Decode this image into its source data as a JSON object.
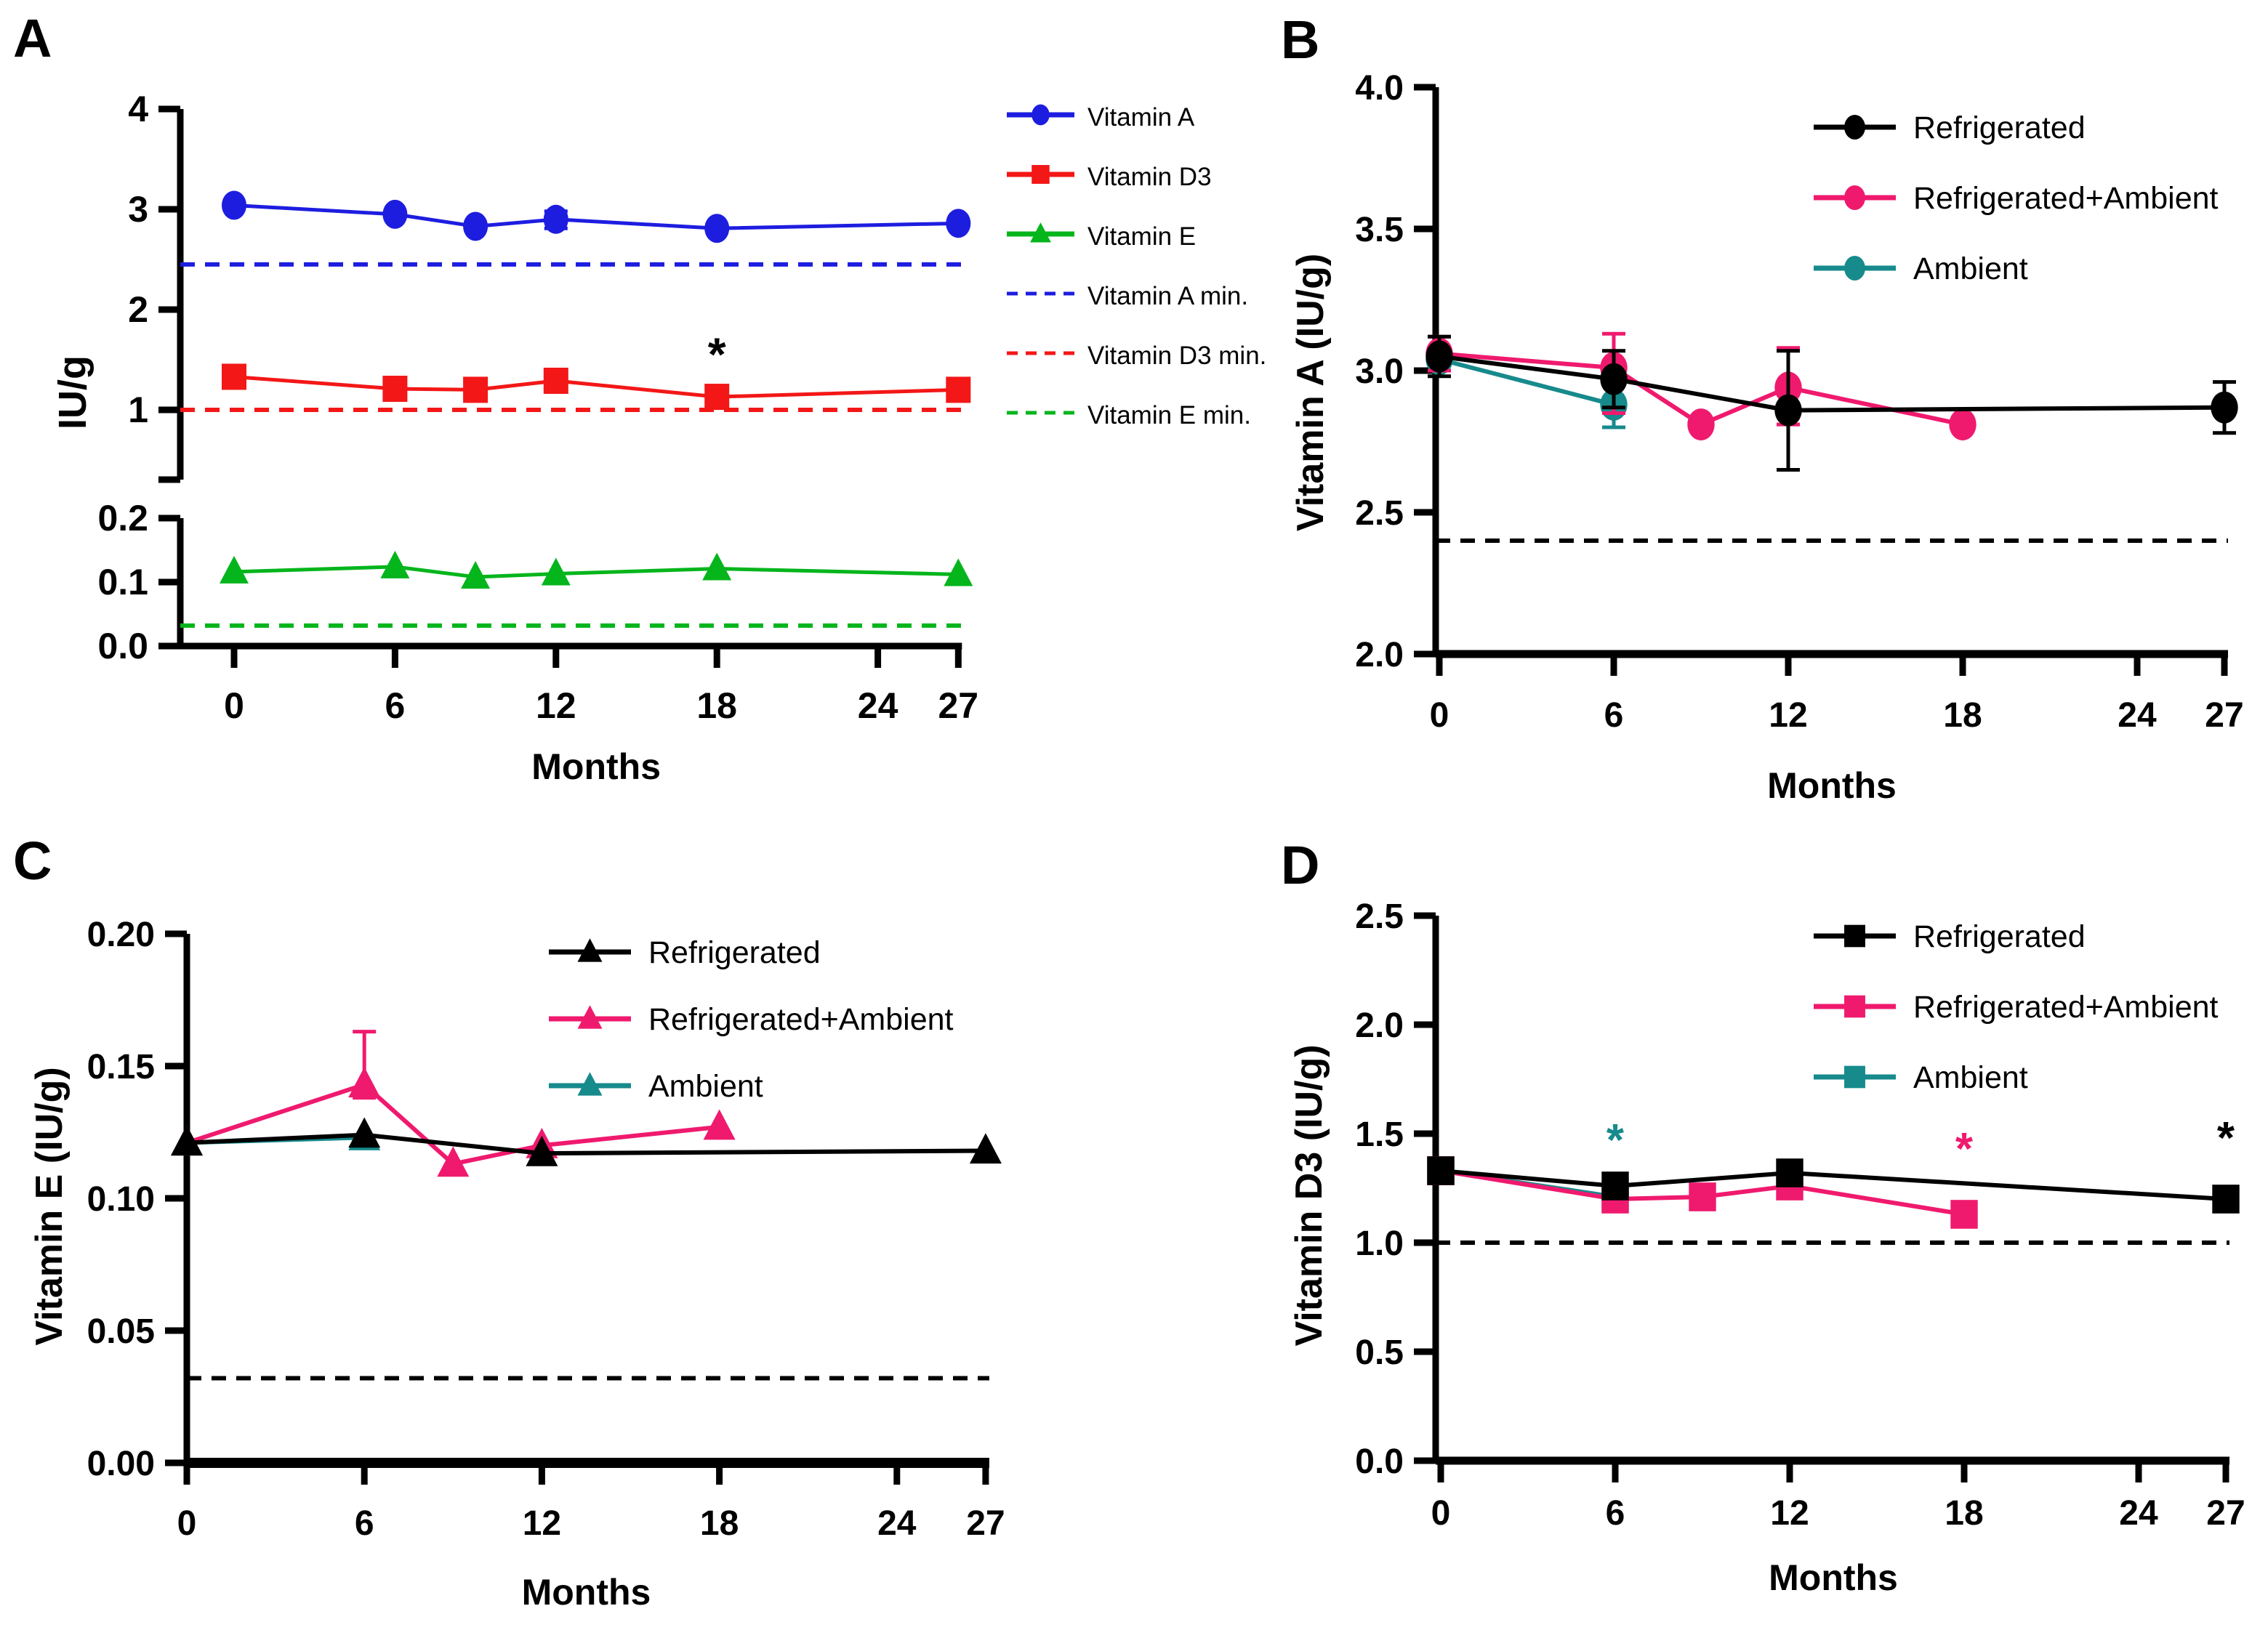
{
  "figure_type": "multi-panel line chart",
  "chart_data": [
    {
      "id": "A",
      "label": "A",
      "type": "line",
      "ylabel": "IU/g",
      "xlabel": "Months",
      "x_axis": {
        "domain": [
          0,
          27
        ],
        "ticks": [
          {
            "value": 0,
            "label": "0"
          },
          {
            "value": 6,
            "label": "6"
          },
          {
            "value": 12,
            "label": "12"
          },
          {
            "value": 18,
            "label": "18"
          },
          {
            "value": 24,
            "label": "24"
          },
          {
            "value": 27,
            "label": "27"
          }
        ]
      },
      "y_segments": [
        {
          "domain": [
            1,
            4
          ],
          "ticks": [
            {
              "value": 4,
              "label": "4"
            },
            {
              "value": 3,
              "label": "3"
            },
            {
              "value": 2,
              "label": "2"
            },
            {
              "value": 1,
              "label": "1"
            }
          ]
        },
        {
          "domain": [
            0,
            0.2
          ],
          "ticks": [
            {
              "value": 0.2,
              "label": "0.2"
            },
            {
              "value": 0.1,
              "label": "0.1"
            },
            {
              "value": 0,
              "label": "0.0"
            }
          ]
        }
      ],
      "ref_lines": [
        {
          "name": "Vitamin A min.",
          "value": 2.45,
          "color": "#1d1de0"
        },
        {
          "name": "Vitamin D3 min.",
          "value": 1.0,
          "color": "#f31717"
        },
        {
          "name": "Vitamin E min.",
          "value": 0.032,
          "color": "#04b51c"
        }
      ],
      "series": [
        {
          "name": "Vitamin A",
          "color": "#1d1de0",
          "marker": "circle",
          "points": [
            {
              "x": 0,
              "y": 3.04
            },
            {
              "x": 6,
              "y": 2.95
            },
            {
              "x": 9,
              "y": 2.83
            },
            {
              "x": 12,
              "y": 2.9,
              "err_plus": 0.08,
              "err_minus": 0.09
            },
            {
              "x": 18,
              "y": 2.81
            },
            {
              "x": 27,
              "y": 2.86
            }
          ]
        },
        {
          "name": "Vitamin D3",
          "color": "#f31717",
          "marker": "square",
          "points": [
            {
              "x": 0,
              "y": 1.33
            },
            {
              "x": 6,
              "y": 1.21
            },
            {
              "x": 9,
              "y": 1.2
            },
            {
              "x": 12,
              "y": 1.29
            },
            {
              "x": 18,
              "y": 1.13
            },
            {
              "x": 27,
              "y": 1.2
            }
          ]
        },
        {
          "name": "Vitamin E",
          "color": "#04b51c",
          "marker": "triangle",
          "points": [
            {
              "x": 0,
              "y": 0.116
            },
            {
              "x": 6,
              "y": 0.124
            },
            {
              "x": 9,
              "y": 0.108
            },
            {
              "x": 12,
              "y": 0.113
            },
            {
              "x": 18,
              "y": 0.121
            },
            {
              "x": 27,
              "y": 0.112
            }
          ]
        }
      ],
      "annotations": [
        {
          "x": 18,
          "y": 1.57,
          "text": "*",
          "color": "#000000"
        }
      ],
      "legend": [
        {
          "label": "Vitamin A",
          "color": "#1d1de0",
          "marker": "circle",
          "line": "solid"
        },
        {
          "label": "Vitamin D3",
          "color": "#f31717",
          "marker": "square",
          "line": "solid"
        },
        {
          "label": "Vitamin E",
          "color": "#04b51c",
          "marker": "triangle",
          "line": "solid"
        },
        {
          "label": "Vitamin A min.",
          "color": "#1d1de0",
          "marker": "none",
          "line": "dashed"
        },
        {
          "label": "Vitamin D3 min.",
          "color": "#f31717",
          "marker": "none",
          "line": "dashed"
        },
        {
          "label": "Vitamin E min.",
          "color": "#04b51c",
          "marker": "none",
          "line": "dashed"
        }
      ]
    },
    {
      "id": "B",
      "label": "B",
      "type": "line",
      "ylabel": "Vitamin A (IU/g)",
      "xlabel": "Months",
      "x_axis": {
        "domain": [
          0,
          27
        ],
        "ticks": [
          {
            "value": 0,
            "label": "0"
          },
          {
            "value": 6,
            "label": "6"
          },
          {
            "value": 12,
            "label": "12"
          },
          {
            "value": 18,
            "label": "18"
          },
          {
            "value": 24,
            "label": "24"
          },
          {
            "value": 27,
            "label": "27"
          }
        ]
      },
      "y_segments": [
        {
          "domain": [
            2,
            4
          ],
          "ticks": [
            {
              "value": 4,
              "label": "4.0"
            },
            {
              "value": 3.5,
              "label": "3.5"
            },
            {
              "value": 3,
              "label": "3.0"
            },
            {
              "value": 2.5,
              "label": "2.5"
            },
            {
              "value": 2,
              "label": "2.0"
            }
          ]
        }
      ],
      "ref_lines": [
        {
          "name": "minimum",
          "value": 2.4,
          "color": "#000000"
        }
      ],
      "series": [
        {
          "name": "Refrigerated",
          "color": "#000000",
          "marker": "circle",
          "points": [
            {
              "x": 0,
              "y": 3.05,
              "err_plus": 0.07,
              "err_minus": 0.07
            },
            {
              "x": 6,
              "y": 2.97,
              "err_plus": 0.1,
              "err_minus": 0.1
            },
            {
              "x": 12,
              "y": 2.86,
              "err_plus": 0.21,
              "err_minus": 0.21
            },
            {
              "x": 27,
              "y": 2.87,
              "err_plus": 0.09,
              "err_minus": 0.09
            }
          ]
        },
        {
          "name": "Refrigerated+Ambient",
          "color": "#ef1a6e",
          "marker": "circle",
          "points": [
            {
              "x": 0,
              "y": 3.06,
              "err_plus": 0.06,
              "err_minus": 0.06
            },
            {
              "x": 6,
              "y": 3.01,
              "err_plus": 0.12,
              "err_minus": 0.16
            },
            {
              "x": 9,
              "y": 2.81
            },
            {
              "x": 12,
              "y": 2.94,
              "err_plus": 0.14,
              "err_minus": 0.13
            },
            {
              "x": 18,
              "y": 2.81
            }
          ]
        },
        {
          "name": "Ambient",
          "color": "#178a8c",
          "marker": "circle",
          "points": [
            {
              "x": 0,
              "y": 3.04
            },
            {
              "x": 6,
              "y": 2.88,
              "err_plus": 0.08,
              "err_minus": 0.08
            }
          ]
        }
      ],
      "annotations": [],
      "legend": [
        {
          "label": "Refrigerated",
          "color": "#000000",
          "marker": "circle",
          "line": "solid"
        },
        {
          "label": "Refrigerated+Ambient",
          "color": "#ef1a6e",
          "marker": "circle",
          "line": "solid"
        },
        {
          "label": "Ambient",
          "color": "#178a8c",
          "marker": "circle",
          "line": "solid"
        }
      ]
    },
    {
      "id": "C",
      "label": "C",
      "type": "line",
      "ylabel": "Vitamin E (IU/g)",
      "xlabel": "Months",
      "x_axis": {
        "domain": [
          0,
          27
        ],
        "ticks": [
          {
            "value": 0,
            "label": "0"
          },
          {
            "value": 6,
            "label": "6"
          },
          {
            "value": 12,
            "label": "12"
          },
          {
            "value": 18,
            "label": "18"
          },
          {
            "value": 24,
            "label": "24"
          },
          {
            "value": 27,
            "label": "27"
          }
        ]
      },
      "y_segments": [
        {
          "domain": [
            0,
            0.2
          ],
          "ticks": [
            {
              "value": 0.2,
              "label": "0.20"
            },
            {
              "value": 0.15,
              "label": "0.15"
            },
            {
              "value": 0.1,
              "label": "0.10"
            },
            {
              "value": 0.05,
              "label": "0.05"
            },
            {
              "value": 0,
              "label": "0.00"
            }
          ]
        }
      ],
      "ref_lines": [
        {
          "name": "minimum",
          "value": 0.032,
          "color": "#000000"
        }
      ],
      "series": [
        {
          "name": "Refrigerated",
          "color": "#000000",
          "marker": "triangle",
          "points": [
            {
              "x": 0,
              "y": 0.121
            },
            {
              "x": 6,
              "y": 0.124
            },
            {
              "x": 12,
              "y": 0.117
            },
            {
              "x": 27,
              "y": 0.118
            }
          ]
        },
        {
          "name": "Refrigerated+Ambient",
          "color": "#ef1a6e",
          "marker": "triangle",
          "points": [
            {
              "x": 0,
              "y": 0.121
            },
            {
              "x": 6,
              "y": 0.143,
              "err_plus": 0.02,
              "err_minus": 0.005
            },
            {
              "x": 9,
              "y": 0.113
            },
            {
              "x": 12,
              "y": 0.12
            },
            {
              "x": 18,
              "y": 0.127
            }
          ]
        },
        {
          "name": "Ambient",
          "color": "#178a8c",
          "marker": "triangle",
          "points": [
            {
              "x": 0,
              "y": 0.121
            },
            {
              "x": 6,
              "y": 0.123
            }
          ]
        }
      ],
      "annotations": [],
      "legend": [
        {
          "label": "Refrigerated",
          "color": "#000000",
          "marker": "triangle",
          "line": "solid"
        },
        {
          "label": "Refrigerated+Ambient",
          "color": "#ef1a6e",
          "marker": "triangle",
          "line": "solid"
        },
        {
          "label": "Ambient",
          "color": "#178a8c",
          "marker": "triangle",
          "line": "solid"
        }
      ]
    },
    {
      "id": "D",
      "label": "D",
      "type": "line",
      "ylabel": "Vitamin D3 (IU/g)",
      "xlabel": "Months",
      "x_axis": {
        "domain": [
          0,
          27
        ],
        "ticks": [
          {
            "value": 0,
            "label": "0"
          },
          {
            "value": 6,
            "label": "6"
          },
          {
            "value": 12,
            "label": "12"
          },
          {
            "value": 18,
            "label": "18"
          },
          {
            "value": 24,
            "label": "24"
          },
          {
            "value": 27,
            "label": "27"
          }
        ]
      },
      "y_segments": [
        {
          "domain": [
            0,
            2.5
          ],
          "ticks": [
            {
              "value": 2.5,
              "label": "2.5"
            },
            {
              "value": 2,
              "label": "2.0"
            },
            {
              "value": 1.5,
              "label": "1.5"
            },
            {
              "value": 1,
              "label": "1.0"
            },
            {
              "value": 0.5,
              "label": "0.5"
            },
            {
              "value": 0,
              "label": "0.0"
            }
          ]
        }
      ],
      "ref_lines": [
        {
          "name": "minimum",
          "value": 1.0,
          "color": "#000000"
        }
      ],
      "series": [
        {
          "name": "Refrigerated",
          "color": "#000000",
          "marker": "square",
          "points": [
            {
              "x": 0,
              "y": 1.33
            },
            {
              "x": 6,
              "y": 1.26
            },
            {
              "x": 12,
              "y": 1.32
            },
            {
              "x": 27,
              "y": 1.2
            }
          ]
        },
        {
          "name": "Refrigerated+Ambient",
          "color": "#ef1a6e",
          "marker": "square",
          "points": [
            {
              "x": 0,
              "y": 1.33
            },
            {
              "x": 6,
              "y": 1.2
            },
            {
              "x": 9,
              "y": 1.21
            },
            {
              "x": 12,
              "y": 1.26
            },
            {
              "x": 18,
              "y": 1.13
            }
          ]
        },
        {
          "name": "Ambient",
          "color": "#178a8c",
          "marker": "square",
          "points": [
            {
              "x": 0,
              "y": 1.33
            },
            {
              "x": 6,
              "y": 1.21
            }
          ]
        }
      ],
      "annotations": [
        {
          "x": 6,
          "y": 1.48,
          "text": "*",
          "color": "#178a8c"
        },
        {
          "x": 18,
          "y": 1.44,
          "text": "*",
          "color": "#ef1a6e"
        },
        {
          "x": 27,
          "y": 1.49,
          "text": "*",
          "color": "#000000"
        }
      ],
      "legend": [
        {
          "label": "Refrigerated",
          "color": "#000000",
          "marker": "square",
          "line": "solid"
        },
        {
          "label": "Refrigerated+Ambient",
          "color": "#ef1a6e",
          "marker": "square",
          "line": "solid"
        },
        {
          "label": "Ambient",
          "color": "#178a8c",
          "marker": "square",
          "line": "solid"
        }
      ]
    }
  ]
}
